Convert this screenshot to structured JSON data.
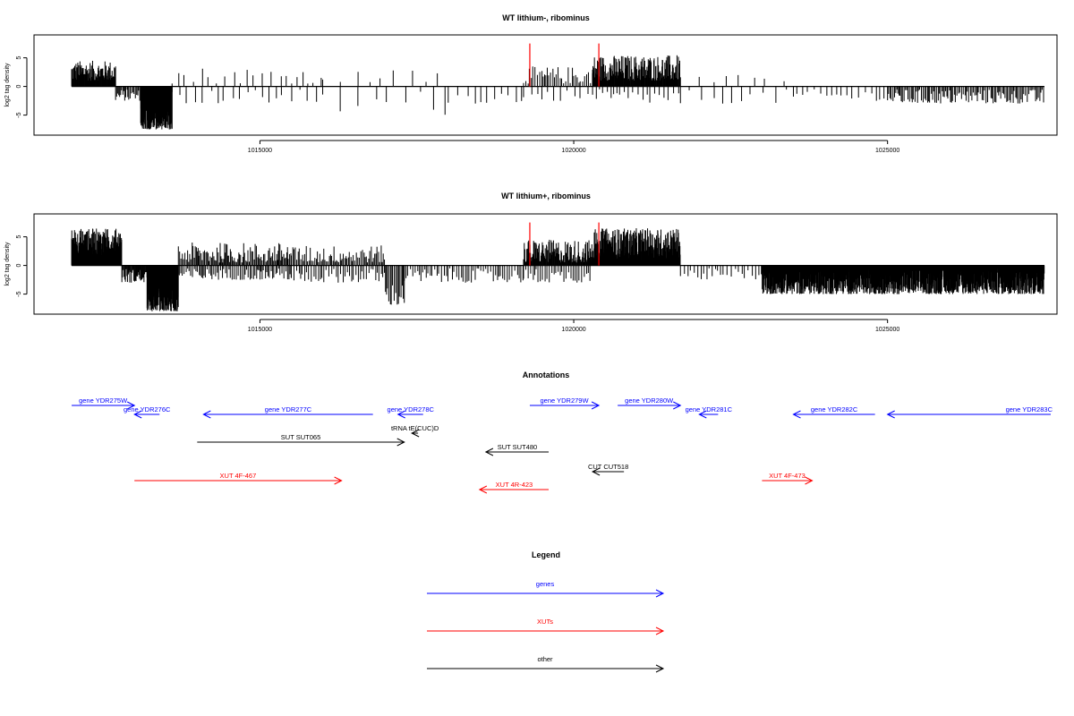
{
  "chart_data": [
    {
      "type": "bar",
      "title": "WT lithium-, ribominus",
      "ylabel": "log2 tag density",
      "ylim": [
        -8.5,
        9
      ],
      "yticks": [
        -5,
        0,
        5
      ],
      "xlim": [
        1011400,
        1027700
      ],
      "xticks": [
        1015000,
        1020000,
        1025000
      ],
      "xtick_labels": [
        "1015000",
        "1020000",
        "1025000"
      ],
      "marker_lines": [
        1019300,
        1020400
      ],
      "marker_color": "#ff0000",
      "profile": [
        {
          "from": 1012000,
          "to": 1012700,
          "y": [
            1,
            4.5
          ],
          "density": 0.14
        },
        {
          "from": 1012700,
          "to": 1013100,
          "y": [
            -2.5,
            -0.5
          ],
          "density": 0.06
        },
        {
          "from": 1013100,
          "to": 1013600,
          "y": [
            -7.5,
            -2
          ],
          "density": 0.5
        },
        {
          "from": 1013600,
          "to": 1016000,
          "y": [
            0.5,
            3.5
          ],
          "density": 0.008
        },
        {
          "from": 1013600,
          "to": 1016000,
          "y": [
            -3,
            -0.5
          ],
          "density": 0.008
        },
        {
          "from": 1016000,
          "to": 1018000,
          "y": [
            0.5,
            3
          ],
          "density": 0.004
        },
        {
          "from": 1016000,
          "to": 1018000,
          "y": [
            -5,
            -0.5
          ],
          "density": 0.004
        },
        {
          "from": 1018000,
          "to": 1019200,
          "y": [
            -3,
            -0.5
          ],
          "density": 0.008
        },
        {
          "from": 1019200,
          "to": 1020300,
          "y": [
            0.5,
            3.5
          ],
          "density": 0.035
        },
        {
          "from": 1019200,
          "to": 1020300,
          "y": [
            -2.5,
            -0.5
          ],
          "density": 0.01
        },
        {
          "from": 1020300,
          "to": 1021700,
          "y": [
            1,
            5.5
          ],
          "density": 0.13
        },
        {
          "from": 1020300,
          "to": 1021700,
          "y": [
            -3,
            -0.5
          ],
          "density": 0.015
        },
        {
          "from": 1021700,
          "to": 1023500,
          "y": [
            0.5,
            2
          ],
          "density": 0.004
        },
        {
          "from": 1021700,
          "to": 1023500,
          "y": [
            -3,
            -0.5
          ],
          "density": 0.006
        },
        {
          "from": 1023500,
          "to": 1025000,
          "y": [
            -2.5,
            -0.5
          ],
          "density": 0.012
        },
        {
          "from": 1025000,
          "to": 1027500,
          "y": [
            -3,
            -0.5
          ],
          "density": 0.045
        }
      ]
    },
    {
      "type": "bar",
      "title": "WT lithium+, ribominus",
      "ylabel": "log2 tag density",
      "ylim": [
        -8.5,
        9
      ],
      "yticks": [
        -5,
        0,
        5
      ],
      "xlim": [
        1011400,
        1027700
      ],
      "xticks": [
        1015000,
        1020000,
        1025000
      ],
      "xtick_labels": [
        "1015000",
        "1020000",
        "1025000"
      ],
      "marker_lines": [
        1019300,
        1020400
      ],
      "marker_color": "#ff0000",
      "profile": [
        {
          "from": 1012000,
          "to": 1012800,
          "y": [
            1.5,
            6.5
          ],
          "density": 0.3
        },
        {
          "from": 1012800,
          "to": 1013200,
          "y": [
            -3,
            -0.5
          ],
          "density": 0.1
        },
        {
          "from": 1013200,
          "to": 1013700,
          "y": [
            -8,
            -2
          ],
          "density": 0.5
        },
        {
          "from": 1013700,
          "to": 1015500,
          "y": [
            0.5,
            4
          ],
          "density": 0.06
        },
        {
          "from": 1013700,
          "to": 1015500,
          "y": [
            -2.5,
            -0.5
          ],
          "density": 0.04
        },
        {
          "from": 1015500,
          "to": 1017000,
          "y": [
            0.5,
            3.5
          ],
          "density": 0.05
        },
        {
          "from": 1015500,
          "to": 1017000,
          "y": [
            -3,
            -0.5
          ],
          "density": 0.03
        },
        {
          "from": 1017000,
          "to": 1017300,
          "y": [
            -7,
            -3
          ],
          "density": 0.05
        },
        {
          "from": 1017300,
          "to": 1019200,
          "y": [
            -3,
            -0.5
          ],
          "density": 0.03
        },
        {
          "from": 1019200,
          "to": 1020300,
          "y": [
            0.5,
            4.5
          ],
          "density": 0.12
        },
        {
          "from": 1019200,
          "to": 1020300,
          "y": [
            -3,
            -0.5
          ],
          "density": 0.03
        },
        {
          "from": 1020300,
          "to": 1021700,
          "y": [
            1,
            6.5
          ],
          "density": 0.25
        },
        {
          "from": 1021700,
          "to": 1023000,
          "y": [
            -2.5,
            -0.5
          ],
          "density": 0.02
        },
        {
          "from": 1023000,
          "to": 1027500,
          "y": [
            -5,
            -0.5
          ],
          "density": 0.25
        }
      ]
    }
  ],
  "annotations": {
    "title": "Annotations",
    "features": [
      {
        "label": "gene YDR275W",
        "start": 1012000,
        "end": 1013000,
        "strand": "+",
        "color": "#0000ff",
        "row": 0
      },
      {
        "label": "gene YDR276C",
        "start": 1013000,
        "end": 1013400,
        "strand": "-",
        "color": "#0000ff",
        "row": 1
      },
      {
        "label": "gene YDR277C",
        "start": 1014100,
        "end": 1016800,
        "strand": "-",
        "color": "#0000ff",
        "row": 1
      },
      {
        "label": "gene YDR278C",
        "start": 1017200,
        "end": 1017600,
        "strand": "-",
        "color": "#0000ff",
        "row": 1
      },
      {
        "label": "tRNA tE(CUC)D",
        "start": 1017420,
        "end": 1017520,
        "strand": "-",
        "color": "#000000",
        "row": 2
      },
      {
        "label": "SUT SUT065",
        "start": 1014000,
        "end": 1017300,
        "strand": "+",
        "color": "#000000",
        "row": 3
      },
      {
        "label": "SUT SUT480",
        "start": 1018600,
        "end": 1019600,
        "strand": "-",
        "color": "#000000",
        "row": 4
      },
      {
        "label": "gene YDR279W",
        "start": 1019300,
        "end": 1020400,
        "strand": "+",
        "color": "#0000ff",
        "row": 0
      },
      {
        "label": "gene YDR280W",
        "start": 1020700,
        "end": 1021700,
        "strand": "+",
        "color": "#0000ff",
        "row": 0
      },
      {
        "label": "gene YDR281C",
        "start": 1022000,
        "end": 1022300,
        "strand": "-",
        "color": "#0000ff",
        "row": 1
      },
      {
        "label": "CUT CUT518",
        "start": 1020300,
        "end": 1020800,
        "strand": "-",
        "color": "#000000",
        "row": 5
      },
      {
        "label": "gene YDR282C",
        "start": 1023500,
        "end": 1024800,
        "strand": "-",
        "color": "#0000ff",
        "row": 1
      },
      {
        "label": "gene YDR283C",
        "start": 1025000,
        "end": 1027600,
        "strand": "-",
        "color": "#0000ff",
        "row": 1
      },
      {
        "label": "XUT 4F-467",
        "start": 1013000,
        "end": 1016300,
        "strand": "+",
        "color": "#ff0000",
        "row": 6
      },
      {
        "label": "XUT 4R-423",
        "start": 1018500,
        "end": 1019600,
        "strand": "-",
        "color": "#ff0000",
        "row": 7
      },
      {
        "label": "XUT 4F-473",
        "start": 1023000,
        "end": 1023800,
        "strand": "+",
        "color": "#ff0000",
        "row": 6
      }
    ]
  },
  "legend": {
    "title": "Legend",
    "entries": [
      {
        "label": "genes",
        "color": "#0000ff"
      },
      {
        "label": "XUTs",
        "color": "#ff0000"
      },
      {
        "label": "other",
        "color": "#000000"
      }
    ]
  }
}
